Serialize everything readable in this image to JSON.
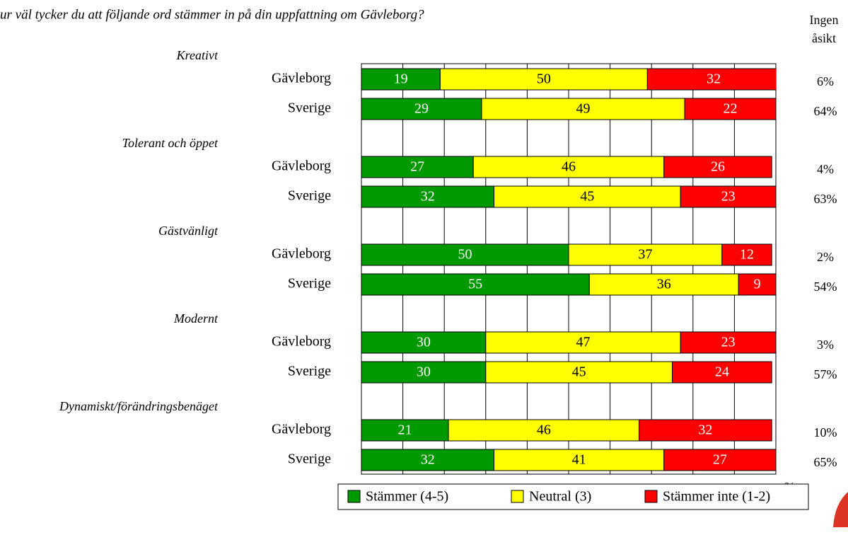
{
  "chart_data": {
    "type": "bar",
    "orientation": "horizontal",
    "stacked": true,
    "title": "ur väl tycker du att följande ord stämmer in på din uppfattning om Gävleborg?",
    "groups": [
      "Kreativt",
      "Tolerant och öppet",
      "Gästvänligt",
      "Modernt",
      "Dynamiskt/förändringsbenäget"
    ],
    "categories": [
      "Gävleborg",
      "Sverige",
      "Gävleborg",
      "Sverige",
      "Gävleborg",
      "Sverige",
      "Gävleborg",
      "Sverige",
      "Gävleborg",
      "Sverige"
    ],
    "series": [
      {
        "name": "Stämmer (4-5)",
        "color": "#009900",
        "label_color": "#ffffff",
        "values": [
          19,
          29,
          27,
          32,
          50,
          55,
          30,
          30,
          21,
          32
        ]
      },
      {
        "name": "Neutral (3)",
        "color": "#ffff00",
        "label_color": "#000000",
        "values": [
          50,
          49,
          46,
          45,
          37,
          36,
          47,
          45,
          46,
          41
        ]
      },
      {
        "name": "Stämmer inte (1-2)",
        "color": "#ff0000",
        "label_color": "#ffffff",
        "values": [
          32,
          22,
          26,
          23,
          12,
          9,
          23,
          24,
          32,
          27
        ]
      }
    ],
    "no_opinion": {
      "header": [
        "Ingen",
        "åsikt"
      ],
      "values": [
        6,
        64,
        4,
        63,
        2,
        54,
        3,
        57,
        10,
        65
      ],
      "value_labels": [
        "6%",
        "64%",
        "4%",
        "63%",
        "2%",
        "54%",
        "3%",
        "57%",
        "10%",
        "65%"
      ]
    },
    "xlim": [
      0,
      100
    ],
    "xticks": [
      0,
      10,
      20,
      30,
      40,
      50,
      60,
      70,
      80,
      90,
      100
    ],
    "x_unit": "%",
    "grid": true
  }
}
